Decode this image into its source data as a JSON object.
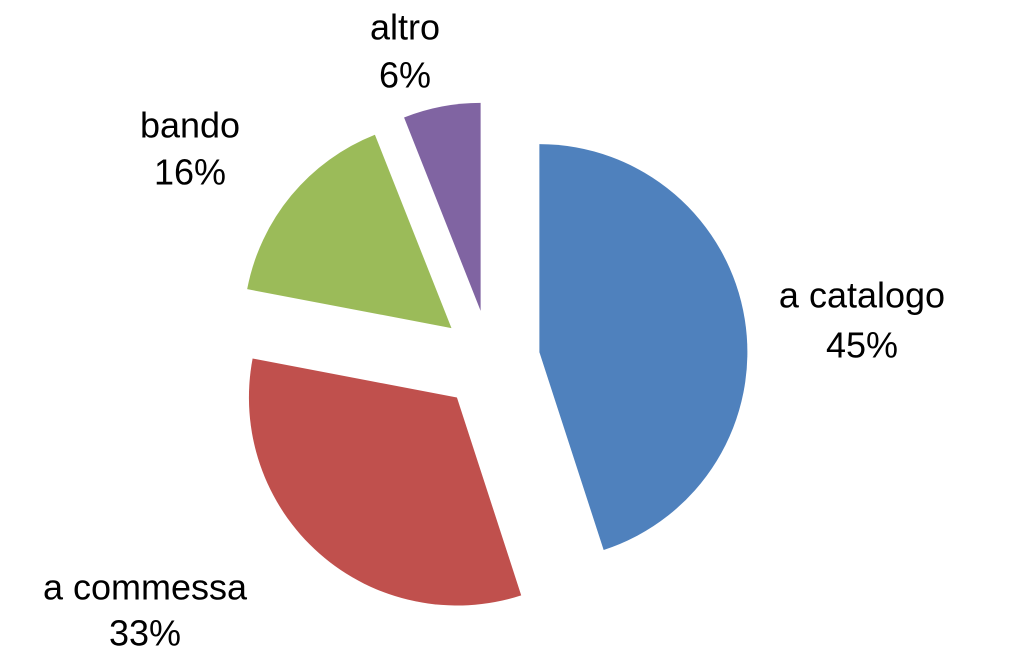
{
  "chart_data": {
    "type": "pie",
    "categories": [
      "a catalogo",
      "a commessa",
      "bando",
      "altro"
    ],
    "values": [
      45,
      33,
      16,
      6
    ],
    "value_labels": [
      "45%",
      "33%",
      "16%",
      "6%"
    ],
    "colors": [
      "#4f81bd",
      "#c0504d",
      "#9bbb59",
      "#8064a2"
    ],
    "exploded": true
  }
}
